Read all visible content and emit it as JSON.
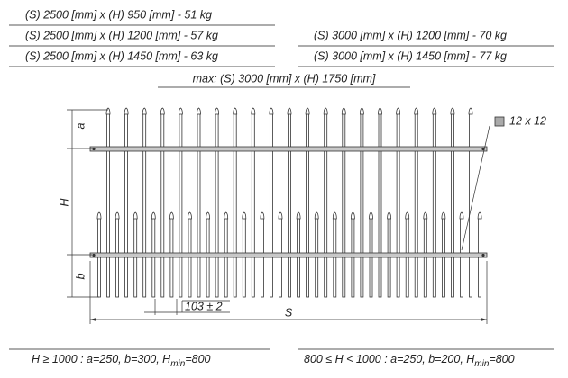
{
  "table": {
    "left": [
      "(S) 2500 [mm] x (H) 950 [mm]   -  51 kg",
      "(S) 2500 [mm] x (H) 1200 [mm]  -  57 kg",
      "(S) 2500 [mm] x (H) 1450 [mm]  -  63 kg"
    ],
    "right": [
      "(S) 3000 [mm] x (H) 1200 [mm]  -  70 kg",
      "(S) 3000 [mm] x (H) 1450 [mm]  -  77 kg"
    ],
    "max": "max: (S) 3000 [mm] x (H) 1750 [mm]"
  },
  "drawing": {
    "rail_label": "12 x 12",
    "dim_a": "a",
    "dim_h": "H",
    "dim_b": "b",
    "dim_spacing": "103 ± 2",
    "dim_s": "S"
  },
  "footer": {
    "left": {
      "text": "H ≥ 1000 : a=250, b=300, H",
      "sub": "min",
      "tail": "=800"
    },
    "right": {
      "text": "800 ≤ H < 1000 : a=250, b=200, H",
      "sub": "min",
      "tail": "=800"
    }
  }
}
